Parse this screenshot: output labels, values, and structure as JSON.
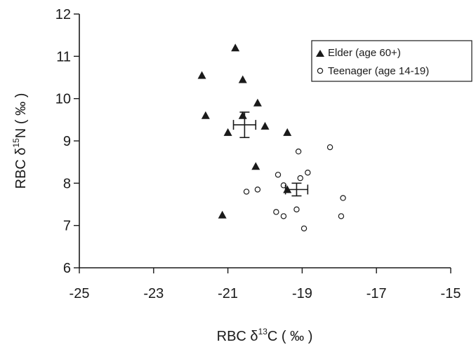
{
  "chart_data": {
    "type": "scatter",
    "title": "",
    "xlabel": {
      "prefix": "RBC δ",
      "sup": "13",
      "suffix": "C ( ‰ )"
    },
    "ylabel": {
      "prefix": "RBC δ",
      "sup": "15",
      "suffix": "N ( ‰ )"
    },
    "xlim": [
      -25,
      -15
    ],
    "ylim": [
      6,
      12
    ],
    "xticks": [
      -25,
      -23,
      -21,
      -19,
      -17,
      -15
    ],
    "yticks": [
      6,
      7,
      8,
      9,
      10,
      11,
      12
    ],
    "grid": false,
    "legend_position": "top-right",
    "series": [
      {
        "name": "Elder (age 60+)",
        "marker": "filled-triangle",
        "color": "#1a1a1a",
        "points": [
          [
            -20.8,
            11.2
          ],
          [
            -21.7,
            10.55
          ],
          [
            -20.6,
            10.45
          ],
          [
            -20.2,
            9.9
          ],
          [
            -21.6,
            9.6
          ],
          [
            -20.6,
            9.6
          ],
          [
            -21.0,
            9.2
          ],
          [
            -20.0,
            9.35
          ],
          [
            -19.4,
            9.2
          ],
          [
            -20.25,
            8.4
          ],
          [
            -19.4,
            7.85
          ],
          [
            -21.15,
            7.25
          ]
        ],
        "mean": {
          "x": -20.55,
          "y": 9.38,
          "x_err": 0.3,
          "y_err": 0.3
        }
      },
      {
        "name": "Teenager (age 14-19)",
        "marker": "open-circle",
        "color": "#1a1a1a",
        "points": [
          [
            -18.25,
            8.85
          ],
          [
            -19.1,
            8.75
          ],
          [
            -18.85,
            8.25
          ],
          [
            -19.65,
            8.2
          ],
          [
            -19.05,
            8.12
          ],
          [
            -19.5,
            7.95
          ],
          [
            -20.2,
            7.85
          ],
          [
            -20.5,
            7.8
          ],
          [
            -17.9,
            7.65
          ],
          [
            -19.15,
            7.38
          ],
          [
            -19.7,
            7.32
          ],
          [
            -19.5,
            7.22
          ],
          [
            -17.95,
            7.22
          ],
          [
            -18.95,
            6.93
          ]
        ],
        "mean": {
          "x": -19.15,
          "y": 7.85,
          "x_err": 0.3,
          "y_err": 0.15
        }
      }
    ]
  }
}
